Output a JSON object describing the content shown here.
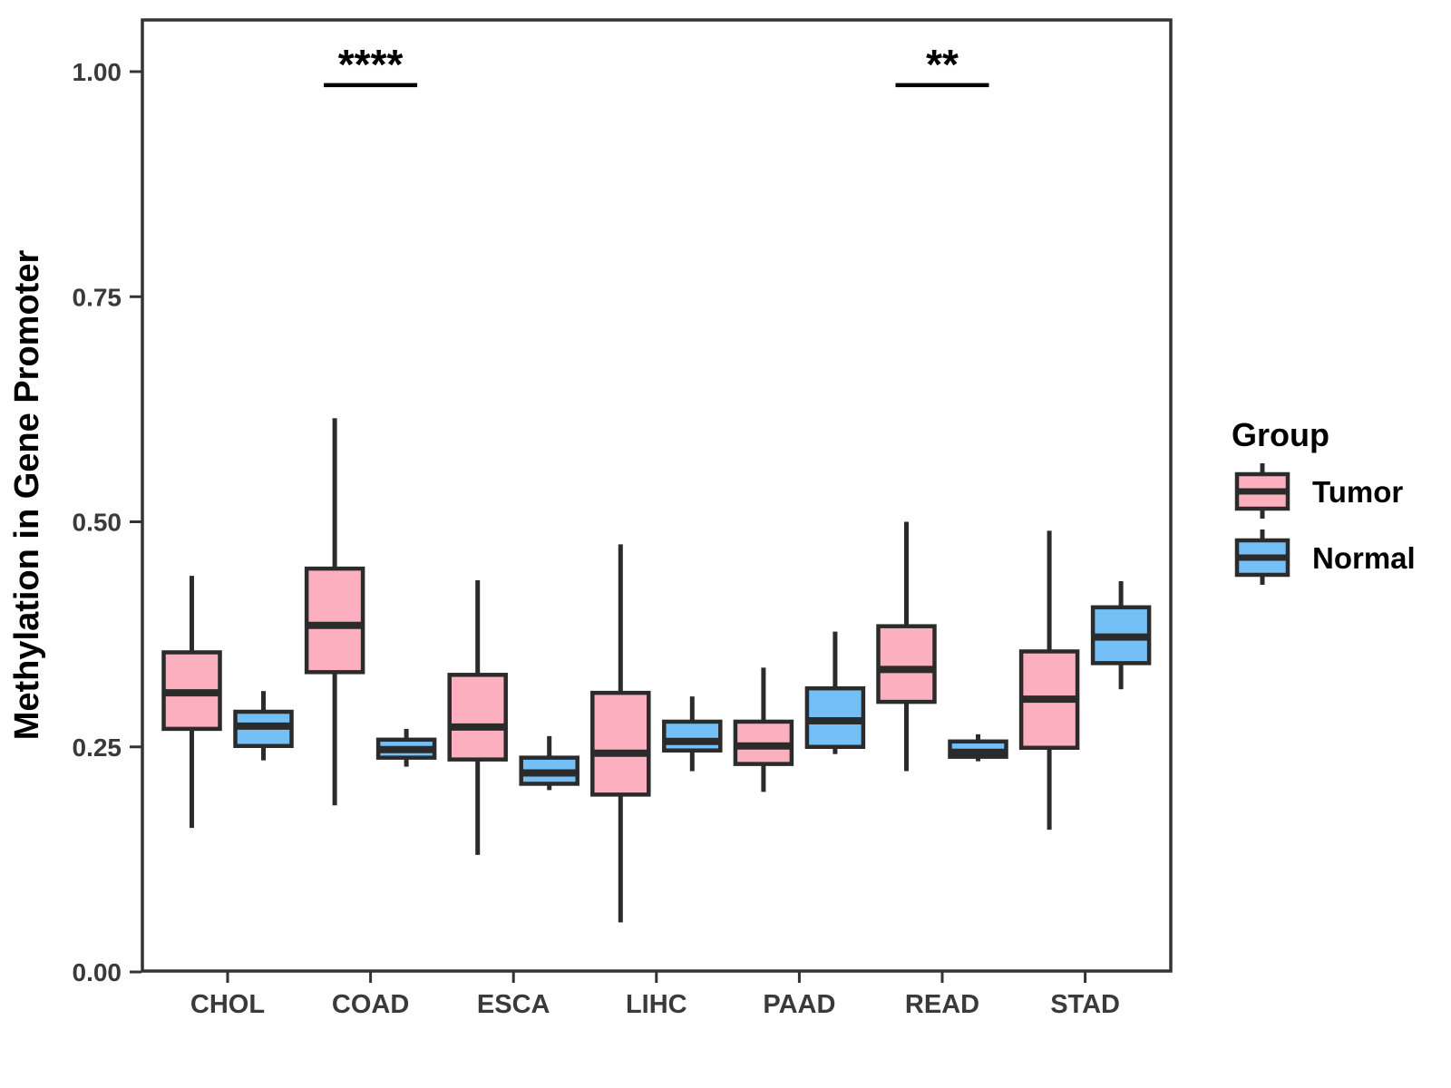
{
  "chart_data": {
    "type": "grouped_boxplot",
    "title": "",
    "xlabel": "",
    "ylabel": "Methylation in Gene Promoter",
    "ylim": [
      0,
      1.05
    ],
    "grid": false,
    "yticks": [
      0.0,
      0.25,
      0.5,
      0.75,
      1.0
    ],
    "ytick_labels": [
      "0.00",
      "0.25",
      "0.50",
      "0.75",
      "1.00"
    ],
    "categories": [
      "CHOL",
      "COAD",
      "ESCA",
      "LIHC",
      "PAAD",
      "READ",
      "STAD"
    ],
    "series": [
      {
        "name": "Tumor",
        "color": "#FCAFBF",
        "boxes": [
          {
            "category": "CHOL",
            "whisker_low": 0.16,
            "q1": 0.27,
            "median": 0.31,
            "q3": 0.355,
            "whisker_high": 0.44
          },
          {
            "category": "COAD",
            "whisker_low": 0.185,
            "q1": 0.333,
            "median": 0.385,
            "q3": 0.448,
            "whisker_high": 0.615
          },
          {
            "category": "ESCA",
            "whisker_low": 0.13,
            "q1": 0.236,
            "median": 0.272,
            "q3": 0.33,
            "whisker_high": 0.435
          },
          {
            "category": "LIHC",
            "whisker_low": 0.055,
            "q1": 0.197,
            "median": 0.243,
            "q3": 0.31,
            "whisker_high": 0.475
          },
          {
            "category": "PAAD",
            "whisker_low": 0.2,
            "q1": 0.231,
            "median": 0.251,
            "q3": 0.278,
            "whisker_high": 0.338
          },
          {
            "category": "READ",
            "whisker_low": 0.223,
            "q1": 0.3,
            "median": 0.336,
            "q3": 0.384,
            "whisker_high": 0.5
          },
          {
            "category": "STAD",
            "whisker_low": 0.158,
            "q1": 0.249,
            "median": 0.303,
            "q3": 0.356,
            "whisker_high": 0.49
          }
        ]
      },
      {
        "name": "Normal",
        "color": "#74BFF5",
        "boxes": [
          {
            "category": "CHOL",
            "whisker_low": 0.235,
            "q1": 0.251,
            "median": 0.273,
            "q3": 0.289,
            "whisker_high": 0.312
          },
          {
            "category": "COAD",
            "whisker_low": 0.228,
            "q1": 0.238,
            "median": 0.247,
            "q3": 0.258,
            "whisker_high": 0.27
          },
          {
            "category": "ESCA",
            "whisker_low": 0.202,
            "q1": 0.209,
            "median": 0.221,
            "q3": 0.238,
            "whisker_high": 0.262
          },
          {
            "category": "LIHC",
            "whisker_low": 0.223,
            "q1": 0.246,
            "median": 0.256,
            "q3": 0.278,
            "whisker_high": 0.306
          },
          {
            "category": "PAAD",
            "whisker_low": 0.242,
            "q1": 0.25,
            "median": 0.279,
            "q3": 0.315,
            "whisker_high": 0.378
          },
          {
            "category": "READ",
            "whisker_low": 0.234,
            "q1": 0.239,
            "median": 0.244,
            "q3": 0.256,
            "whisker_high": 0.264
          },
          {
            "category": "STAD",
            "whisker_low": 0.314,
            "q1": 0.343,
            "median": 0.372,
            "q3": 0.405,
            "whisker_high": 0.434
          }
        ]
      }
    ],
    "annotations": [
      {
        "category": "COAD",
        "label": "****",
        "bar_y": 0.985
      },
      {
        "category": "READ",
        "label": "**",
        "bar_y": 0.985
      }
    ],
    "legend": {
      "title": "Group",
      "position": "right",
      "items": [
        "Tumor",
        "Normal"
      ]
    },
    "colors": {
      "box_border": "#2b2b2b",
      "panel_border": "#333333",
      "tick_text": "#3a3a3a",
      "annotation": "#000000",
      "background": "#ffffff"
    }
  }
}
